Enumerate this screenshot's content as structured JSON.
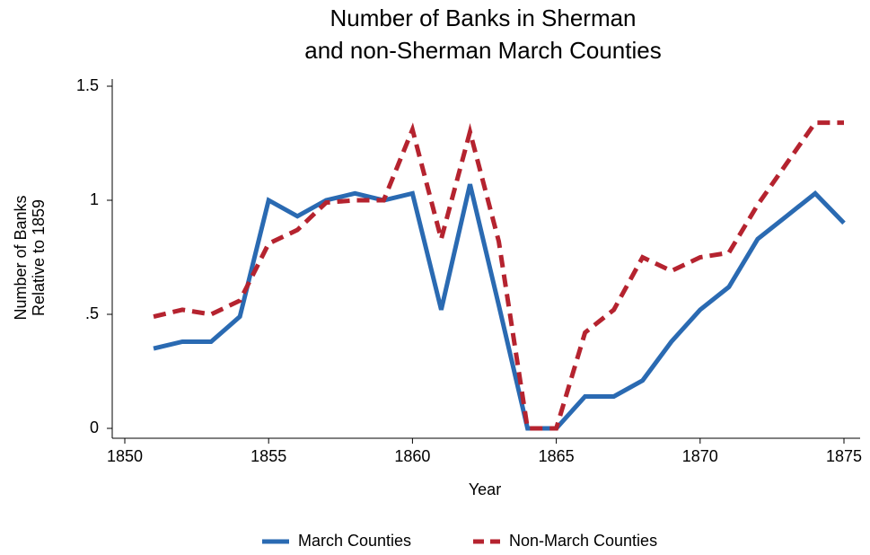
{
  "chart_data": {
    "type": "line",
    "title": [
      "Number of Banks in Sherman",
      "and non-Sherman March Counties"
    ],
    "x_label": "Year",
    "y_label": [
      "Number of Banks",
      "Relative to 1859"
    ],
    "x": [
      1851,
      1852,
      1853,
      1854,
      1855,
      1856,
      1857,
      1858,
      1859,
      1860,
      1861,
      1862,
      1863,
      1864,
      1865,
      1866,
      1867,
      1868,
      1869,
      1870,
      1871,
      1872,
      1873,
      1874,
      1875
    ],
    "series": [
      {
        "name": "March Counties",
        "color": "#2a6ab2",
        "dash": false,
        "values": [
          0.35,
          0.38,
          0.38,
          0.49,
          1.0,
          0.93,
          1.0,
          1.03,
          1.0,
          1.03,
          0.52,
          1.07,
          0.54,
          0,
          0,
          0.14,
          0.14,
          0.21,
          0.38,
          0.52,
          0.62,
          0.83,
          0.93,
          1.03,
          0.9
        ]
      },
      {
        "name": "Non-March Counties",
        "color": "#b5232f",
        "dash": true,
        "values": [
          0.49,
          0.52,
          0.5,
          0.56,
          0.81,
          0.87,
          0.99,
          1.0,
          1.0,
          1.31,
          0.83,
          1.3,
          0.82,
          0,
          0,
          0.42,
          0.52,
          0.75,
          0.69,
          0.75,
          0.77,
          0.98,
          1.16,
          1.34,
          1.34
        ]
      }
    ],
    "xlim": [
      1850,
      1875
    ],
    "xticks": [
      1850,
      1855,
      1860,
      1865,
      1870,
      1875
    ],
    "ylim": [
      0,
      1.5
    ],
    "yticks": [
      0,
      {
        "value": 0.5,
        "label": ".5"
      },
      1,
      1.5
    ],
    "grid": false,
    "legend": "bottom"
  }
}
